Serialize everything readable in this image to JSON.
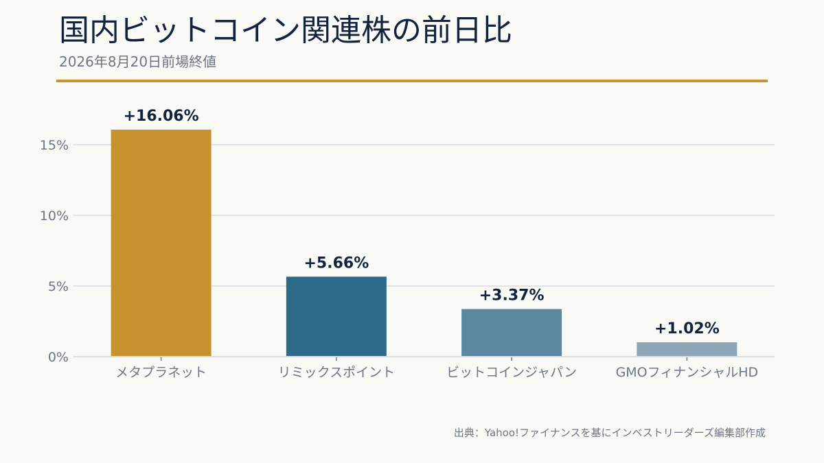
{
  "header": {
    "title": "国内ビットコイン関連株の前日比",
    "subtitle": "2026年8月20日前場終値"
  },
  "footer": {
    "source": "出典：Yahoo!ファイナンスを基にインベストリーダーズ編集部作成"
  },
  "colors": {
    "accent": "#c8922f",
    "bars": [
      "#c8922f",
      "#2c6a89",
      "#5b88a0",
      "#8da6b6"
    ],
    "value_label": "#13233f",
    "axis_text": "#6b7585",
    "grid": "#d9dce3"
  },
  "chart_data": {
    "type": "bar",
    "categories": [
      "メタプラネット",
      "リミックスポイント",
      "ビットコインジャパン",
      "GMOフィナンシャルHD"
    ],
    "values": [
      16.06,
      5.66,
      3.37,
      1.02
    ],
    "value_labels": [
      "+16.06%",
      "+5.66%",
      "+3.37%",
      "+1.02%"
    ],
    "y_ticks": [
      0,
      5,
      10,
      15
    ],
    "y_tick_labels": [
      "0%",
      "5%",
      "10%",
      "15%"
    ],
    "ylim": [
      0,
      16.06
    ],
    "grid": true,
    "legend": "none"
  }
}
